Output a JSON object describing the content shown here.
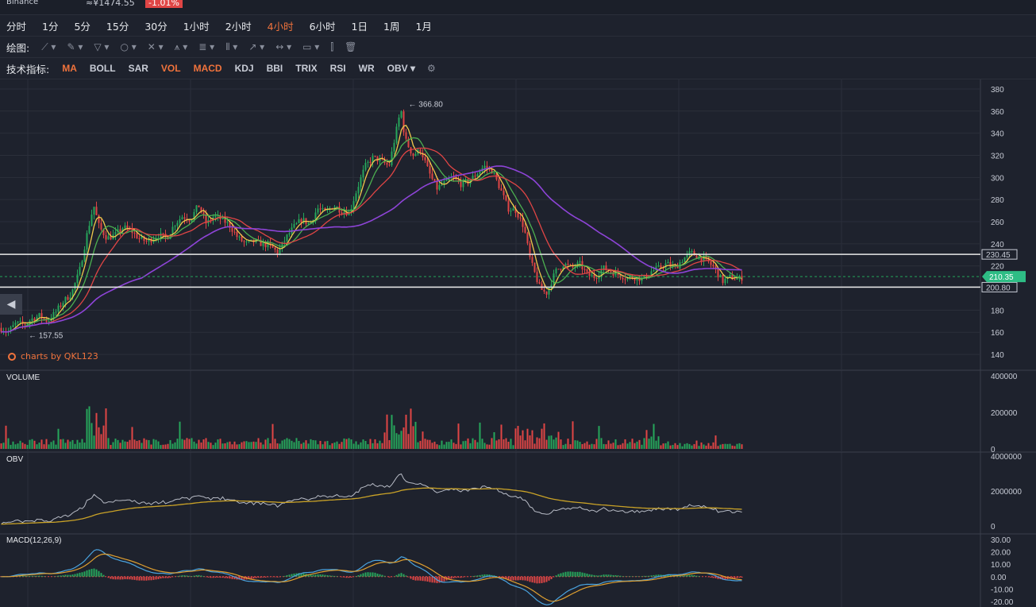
{
  "header": {
    "exchange": "Binance",
    "price": "≈¥1474.55",
    "change": "-1.01%"
  },
  "intervals": [
    {
      "label": "分时",
      "active": false
    },
    {
      "label": "1分",
      "active": false
    },
    {
      "label": "5分",
      "active": false
    },
    {
      "label": "15分",
      "active": false
    },
    {
      "label": "30分",
      "active": false
    },
    {
      "label": "1小时",
      "active": false
    },
    {
      "label": "2小时",
      "active": false
    },
    {
      "label": "4小时",
      "active": true
    },
    {
      "label": "6小时",
      "active": false
    },
    {
      "label": "1日",
      "active": false
    },
    {
      "label": "1周",
      "active": false
    },
    {
      "label": "1月",
      "active": false
    }
  ],
  "drawing": {
    "label": "绘图:",
    "tools": [
      {
        "icon": "line-tool-icon",
        "glyph": "⟋ ▾"
      },
      {
        "icon": "pen-tool-icon",
        "glyph": "✎ ▾"
      },
      {
        "icon": "fib-tool-icon",
        "glyph": "▽ ▾"
      },
      {
        "icon": "shape-tool-icon",
        "glyph": "○ ▾"
      },
      {
        "icon": "cross-tool-icon",
        "glyph": "✕ ▾"
      },
      {
        "icon": "pattern-tool-icon",
        "glyph": "⩚ ▾"
      },
      {
        "icon": "channel-tool-icon",
        "glyph": "≣ ▾"
      },
      {
        "icon": "gann-tool-icon",
        "glyph": "⦀ ▾"
      },
      {
        "icon": "arrow-tool-icon",
        "glyph": "↗ ▾"
      },
      {
        "icon": "range-tool-icon",
        "glyph": "↔ ▾"
      },
      {
        "icon": "comment-tool-icon",
        "glyph": "▭ ▾"
      },
      {
        "icon": "bars-tool-icon",
        "glyph": "⫿"
      },
      {
        "icon": "trash-icon",
        "glyph": "🗑"
      }
    ]
  },
  "indicators": {
    "label": "技术指标:",
    "items": [
      {
        "label": "MA",
        "active": true
      },
      {
        "label": "BOLL",
        "active": false
      },
      {
        "label": "SAR",
        "active": false
      },
      {
        "label": "VOL",
        "active": true
      },
      {
        "label": "MACD",
        "active": true
      },
      {
        "label": "KDJ",
        "active": false
      },
      {
        "label": "BBI",
        "active": false
      },
      {
        "label": "TRIX",
        "active": false
      },
      {
        "label": "RSI",
        "active": false
      },
      {
        "label": "WR",
        "active": false
      },
      {
        "label": "OBV ▾",
        "active": false
      }
    ]
  },
  "watermark": "charts by QKL123",
  "colors": {
    "bg": "#1e222d",
    "grid": "#2b2f3a",
    "up": "#26a65b",
    "down": "#e04545",
    "ma1": "#e8e8e8",
    "ma2": "#f2c94c",
    "ma3": "#4caf50",
    "ma4": "#e04545",
    "ma5": "#8e44d8",
    "obv": "#b8bcc6",
    "obvma": "#c9a227",
    "dif": "#4aa3df",
    "dea": "#e0a030"
  },
  "chart_data": [
    {
      "type": "candlestick",
      "ylim": [
        130,
        385
      ],
      "y_ticks": [
        380,
        360,
        340,
        320,
        300,
        280,
        260,
        240,
        220,
        200,
        180,
        160,
        140
      ],
      "markers": {
        "high": {
          "value": 366.8,
          "label": "366.80"
        },
        "low": {
          "value": 157.55,
          "label": "157.55"
        }
      },
      "hlines": [
        {
          "value": 230.45,
          "label": "230.45"
        },
        {
          "value": 200.8,
          "label": "200.80"
        }
      ],
      "current": {
        "value": 210.35,
        "label": "210.35"
      },
      "trend": [
        [
          0,
          164
        ],
        [
          10,
          160
        ],
        [
          20,
          168
        ],
        [
          30,
          167
        ],
        [
          40,
          172
        ],
        [
          50,
          175
        ],
        [
          60,
          170
        ],
        [
          70,
          178
        ],
        [
          80,
          188
        ],
        [
          90,
          195
        ],
        [
          100,
          215
        ],
        [
          110,
          250
        ],
        [
          118,
          275
        ],
        [
          125,
          255
        ],
        [
          135,
          245
        ],
        [
          145,
          248
        ],
        [
          155,
          255
        ],
        [
          165,
          252
        ],
        [
          175,
          245
        ],
        [
          185,
          242
        ],
        [
          200,
          248
        ],
        [
          210,
          245
        ],
        [
          220,
          258
        ],
        [
          230,
          265
        ],
        [
          240,
          262
        ],
        [
          250,
          275
        ],
        [
          260,
          258
        ],
        [
          270,
          265
        ],
        [
          280,
          262
        ],
        [
          290,
          256
        ],
        [
          300,
          245
        ],
        [
          310,
          240
        ],
        [
          320,
          242
        ],
        [
          330,
          240
        ],
        [
          340,
          238
        ],
        [
          350,
          232
        ],
        [
          360,
          245
        ],
        [
          370,
          255
        ],
        [
          380,
          262
        ],
        [
          390,
          258
        ],
        [
          400,
          272
        ],
        [
          410,
          268
        ],
        [
          420,
          275
        ],
        [
          430,
          270
        ],
        [
          440,
          268
        ],
        [
          450,
          290
        ],
        [
          460,
          310
        ],
        [
          470,
          318
        ],
        [
          480,
          315
        ],
        [
          490,
          310
        ],
        [
          500,
          345
        ],
        [
          505,
          362
        ],
        [
          510,
          335
        ],
        [
          520,
          320
        ],
        [
          530,
          325
        ],
        [
          540,
          305
        ],
        [
          550,
          290
        ],
        [
          560,
          295
        ],
        [
          570,
          300
        ],
        [
          580,
          294
        ],
        [
          590,
          296
        ],
        [
          600,
          303
        ],
        [
          610,
          310
        ],
        [
          620,
          306
        ],
        [
          630,
          290
        ],
        [
          640,
          272
        ],
        [
          650,
          270
        ],
        [
          660,
          255
        ],
        [
          668,
          225
        ],
        [
          680,
          200
        ],
        [
          688,
          195
        ],
        [
          700,
          215
        ],
        [
          710,
          222
        ],
        [
          720,
          218
        ],
        [
          730,
          222
        ],
        [
          740,
          212
        ],
        [
          750,
          210
        ],
        [
          760,
          218
        ],
        [
          770,
          215
        ],
        [
          780,
          212
        ],
        [
          790,
          209
        ],
        [
          800,
          210
        ],
        [
          810,
          208
        ],
        [
          820,
          215
        ],
        [
          830,
          218
        ],
        [
          840,
          222
        ],
        [
          850,
          218
        ],
        [
          860,
          226
        ],
        [
          870,
          232
        ],
        [
          880,
          228
        ],
        [
          890,
          225
        ],
        [
          900,
          218
        ],
        [
          910,
          206
        ],
        [
          920,
          210
        ],
        [
          930,
          208
        ],
        [
          936,
          210
        ]
      ],
      "ma_periods": [
        5,
        10,
        20,
        60
      ]
    },
    {
      "type": "bar",
      "name": "VOLUME",
      "label": "VOLUME",
      "ylim": [
        0,
        400000
      ],
      "y_ticks": [
        400000,
        200000,
        0
      ],
      "y_tick_labels": [
        "400000",
        "200000",
        "0"
      ]
    },
    {
      "type": "line",
      "name": "OBV",
      "label": "OBV",
      "ylim": [
        -100000,
        4000000
      ],
      "y_ticks": [
        4000000,
        2000000,
        0
      ],
      "y_tick_labels": [
        "4000000",
        "2000000",
        "0"
      ]
    },
    {
      "type": "line",
      "name": "MACD",
      "label": "MACD(12,26,9)",
      "ylim": [
        -22,
        32
      ],
      "y_ticks": [
        30,
        20,
        10,
        0,
        -10,
        -20
      ],
      "y_tick_labels": [
        "30.00",
        "20.00",
        "10.00",
        "0.00",
        "-10.00",
        "-20.00"
      ]
    }
  ]
}
